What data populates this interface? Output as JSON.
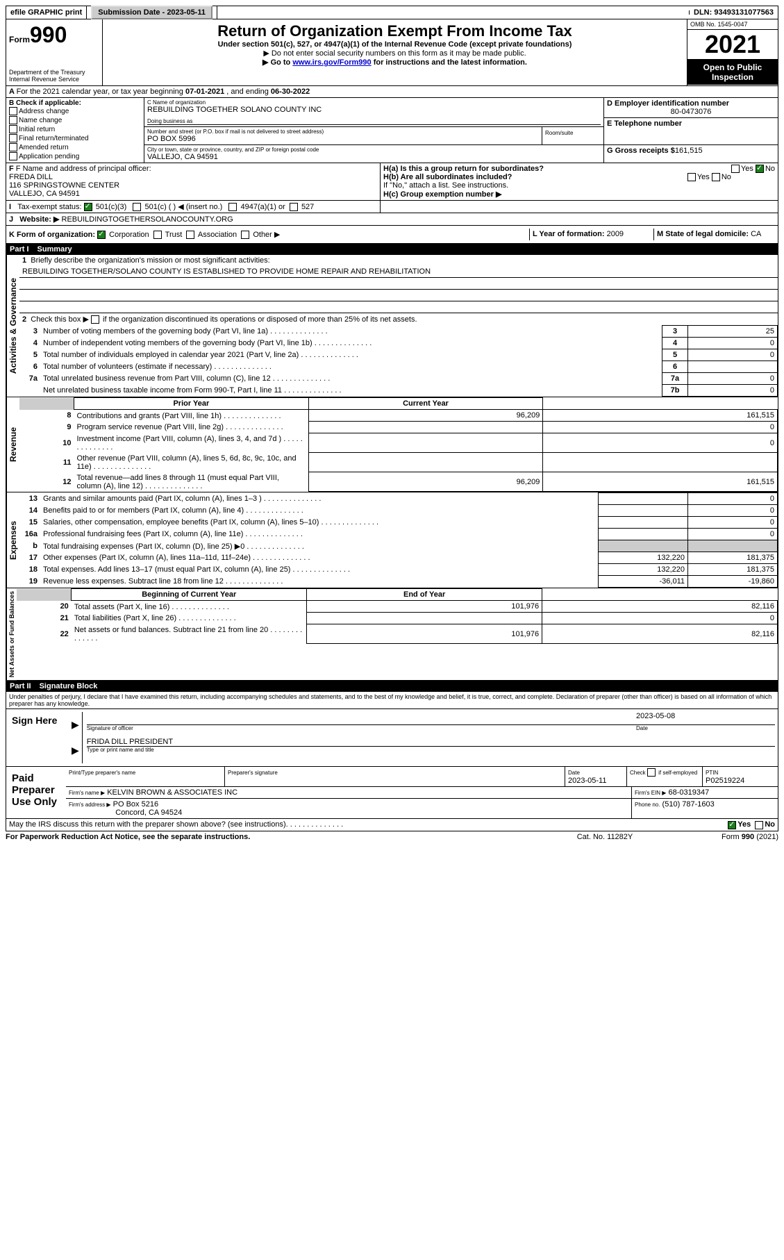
{
  "topbar": {
    "efile": "efile GRAPHIC print",
    "submission_label": "Submission Date - 2023-05-11",
    "dln_label": "DLN: 93493131077563"
  },
  "header": {
    "form_small": "Form",
    "form_num": "990",
    "dept": "Department of the Treasury",
    "irs": "Internal Revenue Service",
    "title": "Return of Organization Exempt From Income Tax",
    "sub1": "Under section 501(c), 527, or 4947(a)(1) of the Internal Revenue Code (except private foundations)",
    "sub2": "▶ Do not enter social security numbers on this form as it may be made public.",
    "sub3a": "▶ Go to ",
    "sub3_link": "www.irs.gov/Form990",
    "sub3b": " for instructions and the latest information.",
    "omb": "OMB No. 1545-0047",
    "year": "2021",
    "open": "Open to Public Inspection"
  },
  "period": {
    "text_a": "For the 2021 calendar year, or tax year beginning ",
    "begin": "07-01-2021",
    "text_b": " , and ending ",
    "end": "06-30-2022"
  },
  "boxB": {
    "title": "B Check if applicable:",
    "items": [
      "Address change",
      "Name change",
      "Initial return",
      "Final return/terminated",
      "Amended return",
      "Application pending"
    ]
  },
  "boxC": {
    "label": "C Name of organization",
    "name": "REBUILDING TOGETHER SOLANO COUNTY INC",
    "dba_label": "Doing business as",
    "addr_label": "Number and street (or P.O. box if mail is not delivered to street address)",
    "room_label": "Room/suite",
    "addr": "PO BOX 5996",
    "city_label": "City or town, state or province, country, and ZIP or foreign postal code",
    "city": "VALLEJO, CA  94591"
  },
  "boxD": {
    "label": "D Employer identification number",
    "value": "80-0473076"
  },
  "boxE": {
    "label": "E Telephone number"
  },
  "boxG": {
    "label": "G Gross receipts $",
    "value": "161,515"
  },
  "boxF": {
    "label": "F Name and address of principal officer:",
    "name": "FREDA DILL",
    "addr1": "116 SPRINGSTOWNE CENTER",
    "addr2": "VALLEJO, CA  94591"
  },
  "boxH": {
    "a": "H(a)  Is this a group return for subordinates?",
    "b": "H(b)  Are all subordinates included?",
    "b2": "If \"No,\" attach a list. See instructions.",
    "c": "H(c)  Group exemption number ▶",
    "yes": "Yes",
    "no": "No"
  },
  "boxI": {
    "label": "Tax-exempt status:",
    "opts": [
      "501(c)(3)",
      "501(c) (  ) ◀ (insert no.)",
      "4947(a)(1) or",
      "527"
    ]
  },
  "boxJ": {
    "label": "Website: ▶",
    "value": "REBUILDINGTOGETHERSOLANOCOUNTY.ORG"
  },
  "boxK": {
    "label": "K Form of organization:",
    "opts": [
      "Corporation",
      "Trust",
      "Association",
      "Other ▶"
    ]
  },
  "boxL": {
    "label": "L Year of formation:",
    "value": "2009"
  },
  "boxM": {
    "label": "M State of legal domicile:",
    "value": "CA"
  },
  "part1": {
    "label": "Part I",
    "title": "Summary"
  },
  "summary": {
    "q1": "Briefly describe the organization's mission or most significant activities:",
    "mission": "REBUILDING TOGETHER/SOLANO COUNTY IS ESTABLISHED TO PROVIDE HOME REPAIR AND REHABILITATION",
    "q2": "Check this box ▶        if the organization discontinued its operations or disposed of more than 25% of its net assets.",
    "lines_gov": [
      {
        "n": "3",
        "t": "Number of voting members of the governing body (Part VI, line 1a)",
        "box": "3",
        "v": "25"
      },
      {
        "n": "4",
        "t": "Number of independent voting members of the governing body (Part VI, line 1b)",
        "box": "4",
        "v": "0"
      },
      {
        "n": "5",
        "t": "Total number of individuals employed in calendar year 2021 (Part V, line 2a)",
        "box": "5",
        "v": "0"
      },
      {
        "n": "6",
        "t": "Total number of volunteers (estimate if necessary)",
        "box": "6",
        "v": ""
      },
      {
        "n": "7a",
        "t": "Total unrelated business revenue from Part VIII, column (C), line 12",
        "box": "7a",
        "v": "0"
      },
      {
        "n": "",
        "t": "Net unrelated business taxable income from Form 990-T, Part I, line 11",
        "box": "7b",
        "v": "0"
      }
    ],
    "col_prior": "Prior Year",
    "col_current": "Current Year",
    "lines_rev": [
      {
        "n": "8",
        "t": "Contributions and grants (Part VIII, line 1h)",
        "p": "96,209",
        "c": "161,515"
      },
      {
        "n": "9",
        "t": "Program service revenue (Part VIII, line 2g)",
        "p": "",
        "c": "0"
      },
      {
        "n": "10",
        "t": "Investment income (Part VIII, column (A), lines 3, 4, and 7d )",
        "p": "",
        "c": "0"
      },
      {
        "n": "11",
        "t": "Other revenue (Part VIII, column (A), lines 5, 6d, 8c, 9c, 10c, and 11e)",
        "p": "",
        "c": ""
      },
      {
        "n": "12",
        "t": "Total revenue—add lines 8 through 11 (must equal Part VIII, column (A), line 12)",
        "p": "96,209",
        "c": "161,515"
      }
    ],
    "lines_exp": [
      {
        "n": "13",
        "t": "Grants and similar amounts paid (Part IX, column (A), lines 1–3 )",
        "p": "",
        "c": "0"
      },
      {
        "n": "14",
        "t": "Benefits paid to or for members (Part IX, column (A), line 4)",
        "p": "",
        "c": "0"
      },
      {
        "n": "15",
        "t": "Salaries, other compensation, employee benefits (Part IX, column (A), lines 5–10)",
        "p": "",
        "c": "0"
      },
      {
        "n": "16a",
        "t": "Professional fundraising fees (Part IX, column (A), line 11e)",
        "p": "",
        "c": "0"
      },
      {
        "n": "b",
        "t": "Total fundraising expenses (Part IX, column (D), line 25) ▶0",
        "p": "grey",
        "c": "grey"
      },
      {
        "n": "17",
        "t": "Other expenses (Part IX, column (A), lines 11a–11d, 11f–24e)",
        "p": "132,220",
        "c": "181,375"
      },
      {
        "n": "18",
        "t": "Total expenses. Add lines 13–17 (must equal Part IX, column (A), line 25)",
        "p": "132,220",
        "c": "181,375"
      },
      {
        "n": "19",
        "t": "Revenue less expenses. Subtract line 18 from line 12",
        "p": "-36,011",
        "c": "-19,860"
      }
    ],
    "col_begin": "Beginning of Current Year",
    "col_end": "End of Year",
    "lines_net": [
      {
        "n": "20",
        "t": "Total assets (Part X, line 16)",
        "p": "101,976",
        "c": "82,116"
      },
      {
        "n": "21",
        "t": "Total liabilities (Part X, line 26)",
        "p": "",
        "c": "0"
      },
      {
        "n": "22",
        "t": "Net assets or fund balances. Subtract line 21 from line 20",
        "p": "101,976",
        "c": "82,116"
      }
    ],
    "vlabels": {
      "gov": "Activities & Governance",
      "rev": "Revenue",
      "exp": "Expenses",
      "net": "Net Assets or Fund Balances"
    }
  },
  "part2": {
    "label": "Part II",
    "title": "Signature Block"
  },
  "sig": {
    "penalties": "Under penalties of perjury, I declare that I have examined this return, including accompanying schedules and statements, and to the best of my knowledge and belief, it is true, correct, and complete. Declaration of preparer (other than officer) is based on all information of which preparer has any knowledge.",
    "sign_here": "Sign Here",
    "sig_officer": "Signature of officer",
    "date": "Date",
    "date_val": "2023-05-08",
    "officer_name": "FRIDA DILL  PRESIDENT",
    "type_name": "Type or print name and title",
    "paid": "Paid Preparer Use Only",
    "prep_name_label": "Print/Type preparer's name",
    "prep_sig_label": "Preparer's signature",
    "prep_date_label": "Date",
    "prep_date": "2023-05-11",
    "check_if": "Check        if self-employed",
    "ptin_label": "PTIN",
    "ptin": "P02519224",
    "firm_name_label": "Firm's name    ▶",
    "firm_name": "KELVIN BROWN & ASSOCIATES INC",
    "firm_ein_label": "Firm's EIN ▶",
    "firm_ein": "68-0319347",
    "firm_addr_label": "Firm's address ▶",
    "firm_addr1": "PO Box 5216",
    "firm_addr2": "Concord, CA  94524",
    "phone_label": "Phone no.",
    "phone": "(510) 787-1603",
    "discuss": "May the IRS discuss this return with the preparer shown above? (see instructions)",
    "yes": "Yes",
    "no": "No"
  },
  "footer": {
    "left": "For Paperwork Reduction Act Notice, see the separate instructions.",
    "mid": "Cat. No. 11282Y",
    "right": "Form 990 (2021)"
  }
}
